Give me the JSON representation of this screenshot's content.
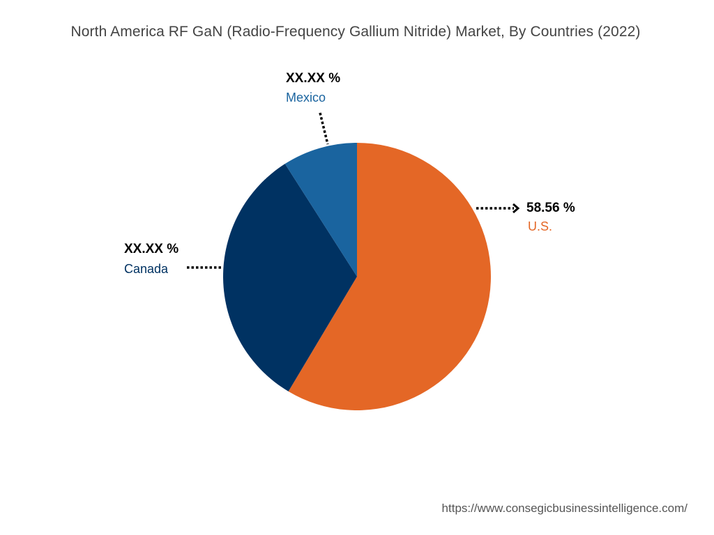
{
  "title": "North America RF GaN (Radio-Frequency Gallium Nitride) Market, By Countries (2022)",
  "source_url": "https://www.consegicbusinessintelligence.com/",
  "chart_data": {
    "type": "pie",
    "title": "North America RF GaN (Radio-Frequency Gallium Nitride) Market, By Countries (2022)",
    "slices": [
      {
        "label": "U.S.",
        "value_label": "58.56  %",
        "value": 58.56,
        "color": "#E46726"
      },
      {
        "label": "Canada",
        "value_label": "XX.XX %",
        "value": 32.4,
        "color": "#003262"
      },
      {
        "label": "Mexico",
        "value_label": "XX.XX %",
        "value": 9.04,
        "color": "#1A649F"
      }
    ]
  }
}
